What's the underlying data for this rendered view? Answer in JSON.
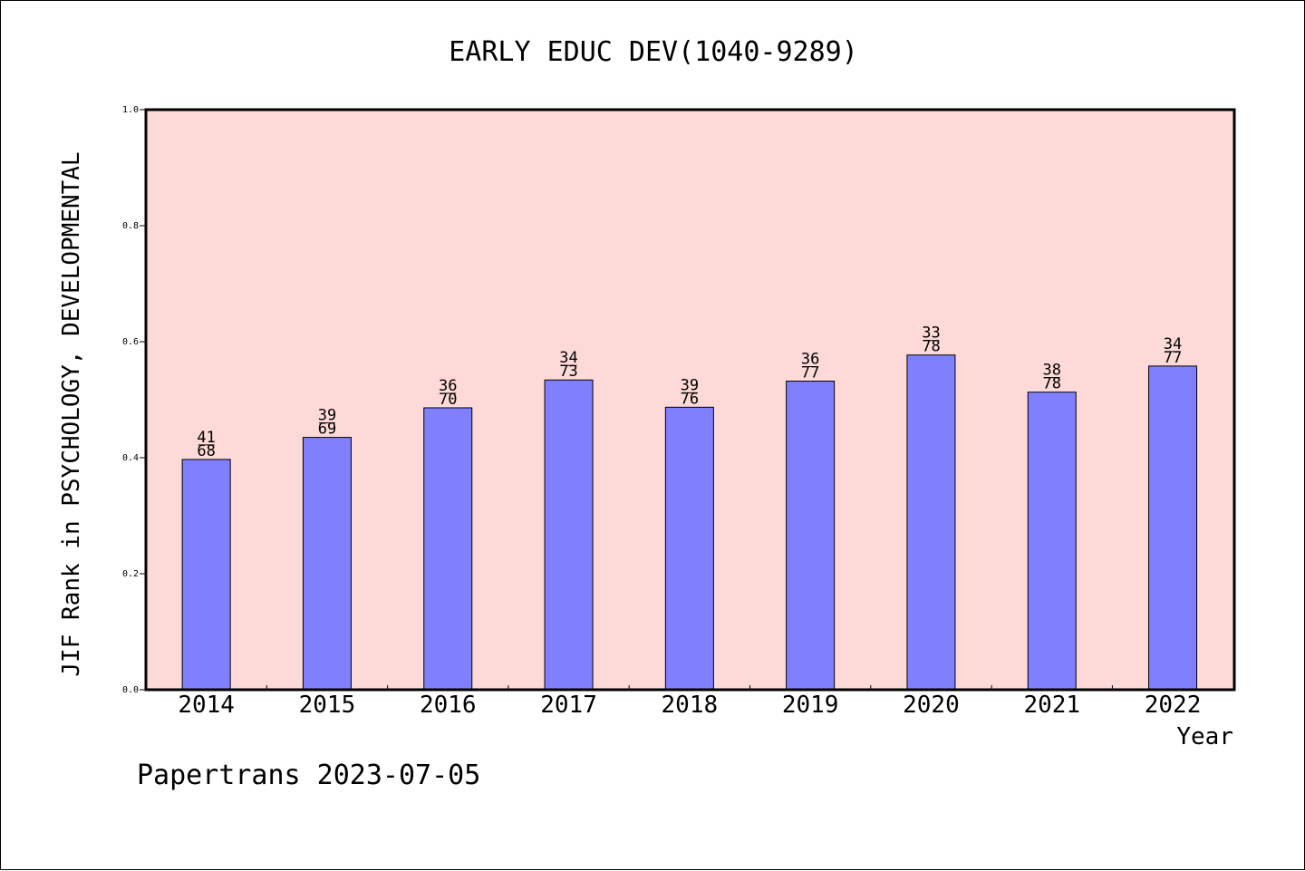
{
  "chart_data": {
    "type": "bar",
    "title": "EARLY EDUC DEV(1040-9289)",
    "xlabel": "Year",
    "ylabel": "JIF Rank in PSYCHOLOGY, DEVELOPMENTAL",
    "ylim": [
      0,
      1.0
    ],
    "yticks": [
      "0.0",
      "0.2",
      "0.4",
      "0.6",
      "0.8",
      "1.0"
    ],
    "categories": [
      "2014",
      "2015",
      "2016",
      "2017",
      "2018",
      "2019",
      "2020",
      "2021",
      "2022"
    ],
    "values": [
      0.397,
      0.435,
      0.486,
      0.534,
      0.487,
      0.532,
      0.577,
      0.513,
      0.558
    ],
    "labels_top": [
      "41",
      "39",
      "36",
      "34",
      "39",
      "36",
      "33",
      "38",
      "34"
    ],
    "labels_bottom": [
      "68",
      "69",
      "70",
      "73",
      "76",
      "77",
      "78",
      "78",
      "77"
    ],
    "bar_color": "#8080ff",
    "plot_background": "#fddad7",
    "grid": false,
    "legend": "none"
  },
  "footer": {
    "watermark": "Papertrans 2023-07-05"
  }
}
